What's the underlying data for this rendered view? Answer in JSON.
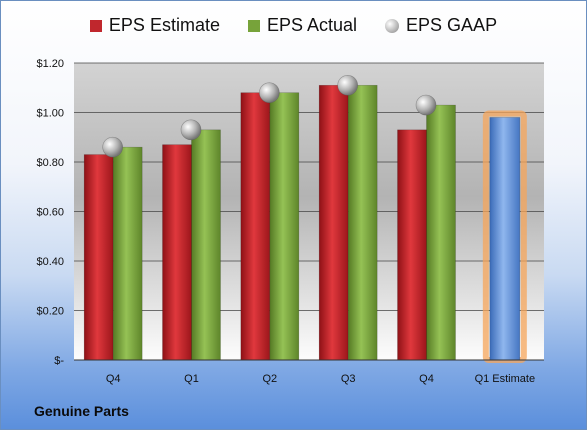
{
  "company_label": "Genuine Parts",
  "chart_data": {
    "type": "bar",
    "categories": [
      "Q4",
      "Q1",
      "Q2",
      "Q3",
      "Q4",
      "Q1 Estimate"
    ],
    "series": [
      {
        "name": "EPS Estimate",
        "color": "#c0272d",
        "values": [
          0.83,
          0.87,
          1.08,
          1.11,
          0.93,
          null
        ]
      },
      {
        "name": "EPS Actual",
        "color": "#77a33a",
        "values": [
          0.86,
          0.93,
          1.08,
          1.11,
          1.03,
          null
        ]
      },
      {
        "name": "EPS GAAP",
        "color": "#a9a9a9",
        "marker": "circle",
        "values": [
          0.86,
          0.93,
          1.08,
          1.11,
          1.03,
          null
        ]
      }
    ],
    "estimate": {
      "category": "Q1 Estimate",
      "value": 0.98,
      "color": "#5d8fd8",
      "highlight": "#f5a65b"
    },
    "y_ticks": [
      "$-",
      "$0.20",
      "$0.40",
      "$0.60",
      "$0.80",
      "$1.00",
      "$1.20"
    ],
    "ylim": [
      0,
      1.2
    ],
    "legend_position": "top",
    "grid": true
  }
}
